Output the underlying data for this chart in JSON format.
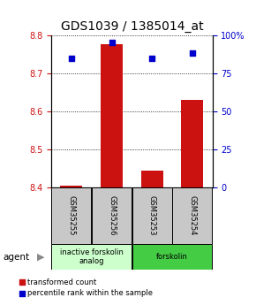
{
  "title": "GDS1039 / 1385014_at",
  "samples": [
    "GSM35255",
    "GSM35256",
    "GSM35253",
    "GSM35254"
  ],
  "bar_values": [
    8.405,
    8.775,
    8.445,
    8.63
  ],
  "bar_base": 8.4,
  "bar_color": "#cc1111",
  "dot_values": [
    85,
    95,
    85,
    88
  ],
  "dot_color": "#0000cc",
  "ylim_left": [
    8.4,
    8.8
  ],
  "ylim_right": [
    0,
    100
  ],
  "yticks_left": [
    8.4,
    8.5,
    8.6,
    8.7,
    8.8
  ],
  "yticks_right": [
    0,
    25,
    50,
    75,
    100
  ],
  "groups": [
    {
      "label": "inactive forskolin\nanalog",
      "samples": [
        0,
        1
      ],
      "color": "#ccffcc"
    },
    {
      "label": "forskolin",
      "samples": [
        2,
        3
      ],
      "color": "#44cc44"
    }
  ],
  "legend_red": "transformed count",
  "legend_blue": "percentile rank within the sample",
  "agent_label": "agent",
  "bg_bar_color": "#c8c8c8",
  "title_fontsize": 10,
  "tick_fontsize": 7,
  "dot_size": 22,
  "bar_width": 0.55
}
